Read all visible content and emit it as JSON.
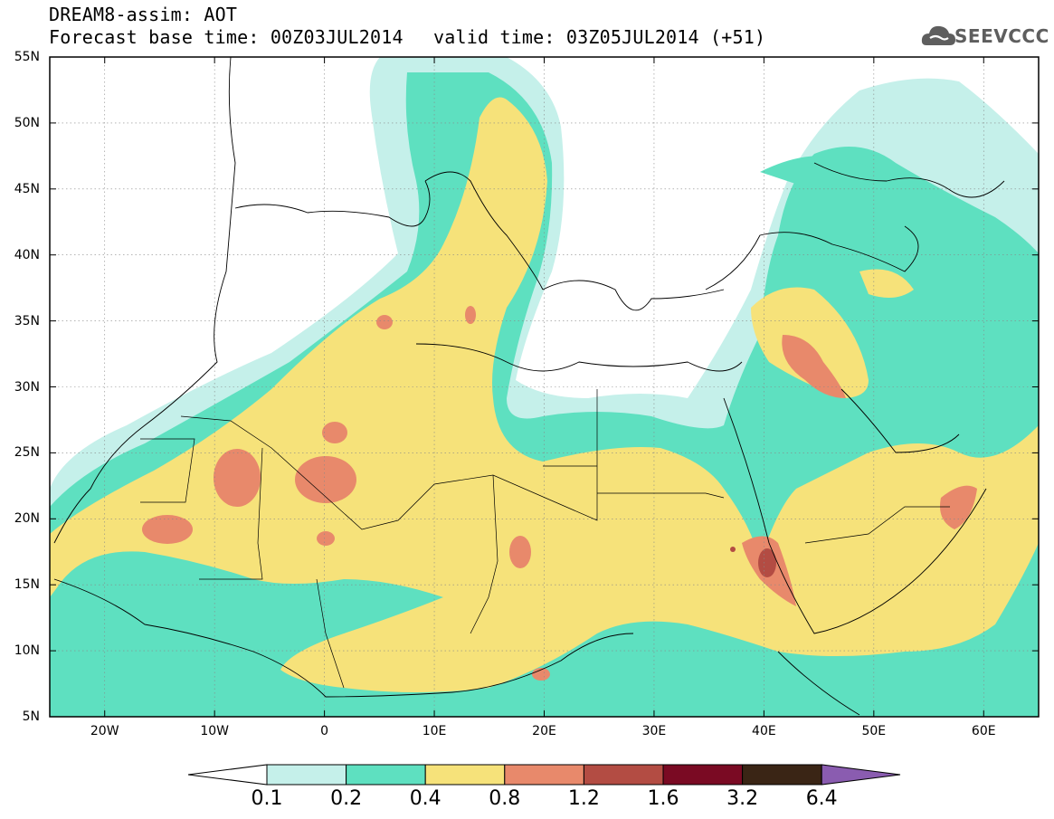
{
  "header": {
    "line1": "DREAM8-assim: AOT",
    "line2_left": "Forecast base time: 00Z03JUL2014",
    "line2_right": "valid time: 03Z05JUL2014 (+51)",
    "logo_text": "SEEVCCC",
    "logo_icon": "cloud-icon"
  },
  "map": {
    "lat_labels": [
      "55N",
      "50N",
      "45N",
      "40N",
      "35N",
      "30N",
      "25N",
      "20N",
      "15N",
      "10N",
      "5N"
    ],
    "lon_labels": [
      "20W",
      "10W",
      "0",
      "10E",
      "20E",
      "30E",
      "40E",
      "50E",
      "60E"
    ]
  },
  "colorbar": {
    "labels": [
      "0.1",
      "0.2",
      "0.4",
      "0.8",
      "1.2",
      "1.6",
      "3.2",
      "6.4"
    ],
    "colors": [
      "#ffffff",
      "#c5f0ea",
      "#5ee0c0",
      "#f6e27a",
      "#e8896b",
      "#b34c43",
      "#7a0a23",
      "#3a2515",
      "#8a5cb0"
    ]
  }
}
